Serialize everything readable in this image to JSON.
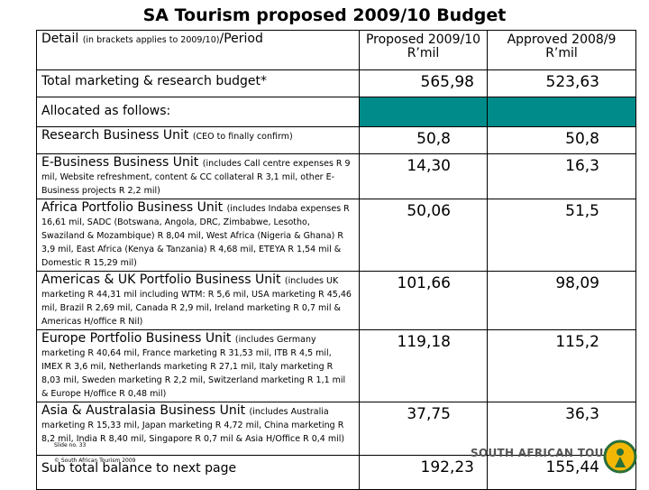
{
  "title": "SA Tourism proposed 2009/10 Budget",
  "header": {
    "detail": "Detail",
    "detail_note": "(in brackets applies to 2009/10)",
    "period": "/Period",
    "proposed": "Proposed 2009/10 R’mil",
    "approved": "Approved 2008/9 R’mil"
  },
  "total": {
    "label": "Total marketing & research budget*",
    "proposed": "565,98",
    "approved": "523,63"
  },
  "allocated": "Allocated as follows:",
  "rows": [
    {
      "label": "Research Business Unit",
      "note": "(CEO to finally confirm)",
      "proposed": "50,8",
      "approved": "50,8"
    },
    {
      "label": "E-Business Business Unit",
      "note": "(includes Call centre expenses R 9 mil, Website refreshment, content & CC collateral R 3,1 mil, other E-Business projects R 2,2 mil)",
      "proposed": "14,30",
      "approved": "16,3"
    },
    {
      "label": "Africa Portfolio Business Unit",
      "note": "(includes Indaba expenses R 16,61 mil, SADC (Botswana, Angola, DRC, Zimbabwe, Lesotho, Swaziland & Mozambique) R 8,04 mil, West Africa (Nigeria & Ghana) R 3,9 mil, East Africa (Kenya & Tanzania) R 4,68 mil, ETEYA R 1,54 mil & Domestic R 15,29 mil)",
      "proposed": "50,06",
      "approved": "51,5"
    },
    {
      "label": "Americas & UK Portfolio Business Unit",
      "note": "(includes UK marketing R 44,31 mil including WTM: R 5,6 mil, USA marketing R 45,46 mil, Brazil R 2,69 mil, Canada R 2,9 mil, Ireland marketing R 0,7 mil & Americas H/office R Nil)",
      "proposed": "101,66",
      "approved": "98,09"
    },
    {
      "label": "Europe Portfolio Business Unit",
      "note": "(includes Germany marketing R 40,64 mil, France marketing R 31,53 mil, ITB R 4,5 mil, IMEX R 3,6 mil, Netherlands marketing R 27,1 mil, Italy marketing R 8,03 mil, Sweden marketing R 2,2 mil, Switzerland marketing R 1,1 mil & Europe H/office R 0,48 mil)",
      "proposed": "119,18",
      "approved": "115,2"
    },
    {
      "label": "Asia & Australasia Business Unit",
      "note": "(includes Australia marketing R 15,33 mil, Japan marketing R 4,72 mil, China marketing R 8,2 mil, India R 8,40 mil, Singapore R 0,7 mil & Asia H/Office R 0,4 mil)",
      "proposed": "37,75",
      "approved": "36,3"
    }
  ],
  "subtotal": {
    "label": "Sub total balance to next page",
    "proposed": "192,23",
    "approved": "155,44"
  },
  "footer": {
    "slide": "Slide no. 33",
    "copyright": "© South African Tourism 2009",
    "logo": "SOUTH AFRICAN TOURISM"
  }
}
